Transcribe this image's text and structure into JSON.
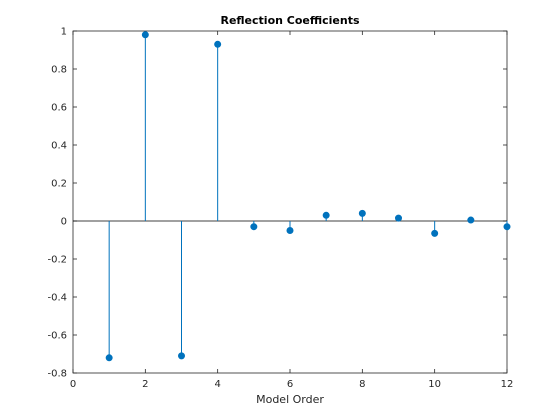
{
  "chart_data": {
    "type": "stem",
    "title": "Reflection Coefficients",
    "xlabel": "Model Order",
    "ylabel": "",
    "xlim": [
      0,
      12
    ],
    "ylim": [
      -0.8,
      1
    ],
    "xticks": [
      "0",
      "2",
      "4",
      "6",
      "8",
      "10",
      "12"
    ],
    "yticks": [
      "-0.8",
      "-0.6",
      "-0.4",
      "-0.2",
      "0",
      "0.2",
      "0.4",
      "0.6",
      "0.8",
      "1"
    ],
    "x": [
      1,
      2,
      3,
      4,
      5,
      6,
      7,
      8,
      9,
      10,
      11,
      12
    ],
    "values": [
      -0.72,
      0.98,
      -0.71,
      0.93,
      -0.03,
      -0.05,
      0.03,
      0.04,
      0.015,
      -0.065,
      0.005,
      -0.03
    ],
    "grid": false,
    "colors": {
      "series": "#0072BD",
      "axis": "#262626",
      "baseline": "#000000"
    }
  }
}
